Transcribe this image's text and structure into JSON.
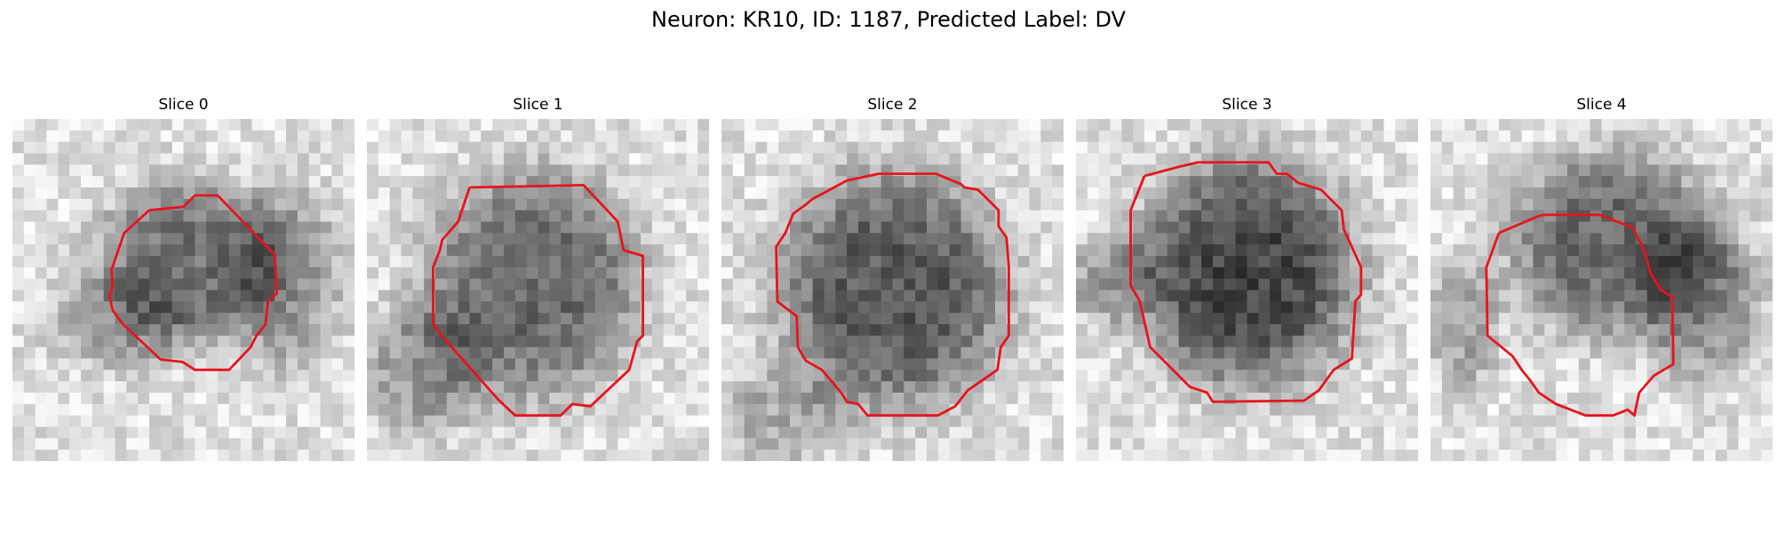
{
  "figure": {
    "title": "Neuron: KR10, ID: 1187, Predicted Label: DV"
  },
  "panels": [
    {
      "title": "Slice 0"
    },
    {
      "title": "Slice 1"
    },
    {
      "title": "Slice 2"
    },
    {
      "title": "Slice 3"
    },
    {
      "title": "Slice 4"
    }
  ],
  "colors": {
    "roi_outline": "#e8141c",
    "background": "#ffffff"
  }
}
